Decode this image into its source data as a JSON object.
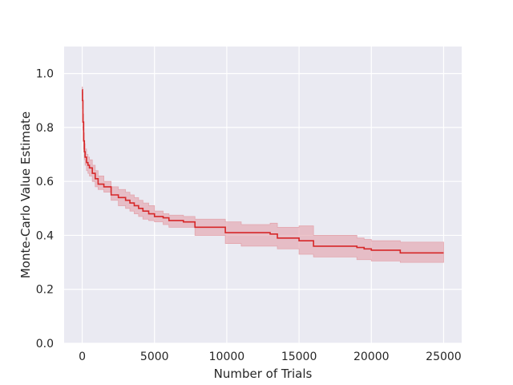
{
  "chart_data": {
    "type": "line",
    "title": "",
    "xlabel": "Number of Trials",
    "ylabel": "Monte-Carlo Value Estimate",
    "xlim": [
      -1250,
      26250
    ],
    "ylim": [
      0.0,
      1.1
    ],
    "x_ticks": [
      0,
      5000,
      10000,
      15000,
      20000,
      25000
    ],
    "x_tick_labels": [
      "0",
      "5000",
      "10000",
      "15000",
      "20000",
      "25000"
    ],
    "y_ticks": [
      0.0,
      0.2,
      0.4,
      0.6,
      0.8,
      1.0
    ],
    "y_tick_labels": [
      "0.0",
      "0.2",
      "0.4",
      "0.6",
      "0.8",
      "1.0"
    ],
    "grid": true,
    "colors": {
      "background": "#eaeaf2",
      "grid": "#ffffff",
      "line": "#d62728",
      "band": "#e3a5ad"
    },
    "series": [
      {
        "style": "step",
        "x": [
          0,
          20,
          50,
          100,
          150,
          200,
          300,
          400,
          500,
          700,
          900,
          1100,
          1500,
          2000,
          2500,
          3000,
          3300,
          3600,
          3900,
          4200,
          4600,
          5000,
          5600,
          6000,
          7000,
          7800,
          9000,
          9900,
          11000,
          13000,
          13500,
          15000,
          16000,
          17000,
          19000,
          19500,
          20000,
          22000,
          25000
        ],
        "y": [
          0.94,
          0.9,
          0.82,
          0.75,
          0.71,
          0.69,
          0.67,
          0.66,
          0.65,
          0.63,
          0.61,
          0.59,
          0.58,
          0.55,
          0.54,
          0.53,
          0.52,
          0.51,
          0.5,
          0.49,
          0.48,
          0.47,
          0.465,
          0.455,
          0.45,
          0.43,
          0.43,
          0.41,
          0.41,
          0.405,
          0.39,
          0.38,
          0.36,
          0.36,
          0.355,
          0.35,
          0.345,
          0.335,
          0.335
        ],
        "lower": [
          0.92,
          0.87,
          0.79,
          0.72,
          0.68,
          0.66,
          0.64,
          0.63,
          0.62,
          0.6,
          0.58,
          0.57,
          0.56,
          0.53,
          0.51,
          0.5,
          0.49,
          0.48,
          0.47,
          0.46,
          0.455,
          0.45,
          0.44,
          0.43,
          0.43,
          0.4,
          0.4,
          0.37,
          0.36,
          0.36,
          0.35,
          0.33,
          0.32,
          0.32,
          0.31,
          0.31,
          0.305,
          0.3,
          0.3
        ],
        "upper": [
          0.95,
          0.93,
          0.85,
          0.78,
          0.74,
          0.72,
          0.7,
          0.69,
          0.68,
          0.66,
          0.64,
          0.62,
          0.6,
          0.58,
          0.57,
          0.56,
          0.55,
          0.54,
          0.53,
          0.52,
          0.51,
          0.49,
          0.48,
          0.475,
          0.47,
          0.46,
          0.46,
          0.45,
          0.44,
          0.445,
          0.43,
          0.435,
          0.4,
          0.4,
          0.39,
          0.385,
          0.38,
          0.375,
          0.375
        ]
      }
    ]
  }
}
